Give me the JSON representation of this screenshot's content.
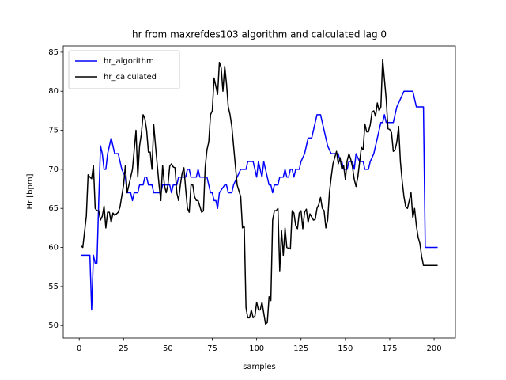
{
  "chart_data": {
    "type": "line",
    "title": "hr from maxrefdes103 algorithm and calculated lag 0",
    "x_label": "samples",
    "y_label": "Hr [bpm]",
    "xlim": [
      -9,
      212
    ],
    "ylim": [
      48.4,
      85.8
    ],
    "xticks": [
      0,
      25,
      50,
      75,
      100,
      125,
      150,
      175,
      200
    ],
    "yticks": [
      50,
      55,
      60,
      65,
      70,
      75,
      80,
      85
    ],
    "legend": "upper left",
    "series": [
      {
        "name": "hr_algorithm",
        "color": "#0000ff",
        "x": [
          1,
          4,
          6,
          7,
          8,
          9,
          10,
          11,
          12,
          13,
          14,
          15,
          16,
          18,
          20,
          22,
          24,
          26,
          27,
          29,
          30,
          31,
          33,
          34,
          36,
          37,
          38,
          39,
          41,
          42,
          46,
          47,
          51,
          52,
          53,
          55,
          56,
          60,
          61,
          62,
          63,
          66,
          67,
          68,
          72,
          73,
          74,
          75,
          76,
          77,
          78,
          79,
          82,
          83,
          84,
          86,
          87,
          89,
          91,
          94,
          95,
          98,
          99,
          100,
          101,
          102,
          103,
          104,
          106,
          107,
          108,
          109,
          110,
          112,
          113,
          115,
          116,
          117,
          118,
          119,
          120,
          121,
          122,
          124,
          125,
          127,
          129,
          131,
          132,
          134,
          136,
          138,
          140,
          142,
          146,
          147,
          148,
          149,
          151,
          152,
          154,
          155,
          156,
          158,
          160,
          161,
          163,
          164,
          166,
          168,
          170,
          171,
          172,
          173,
          177,
          179,
          181,
          183,
          188,
          190,
          194,
          195,
          202
        ],
        "values": [
          59,
          59,
          59,
          52,
          59,
          58,
          58,
          66,
          73,
          72,
          70,
          70,
          72,
          74,
          72,
          72,
          70,
          69,
          67,
          67,
          66,
          67,
          67,
          68,
          68,
          69,
          69,
          68,
          68,
          67,
          67,
          68,
          68,
          67,
          68,
          68,
          69,
          69,
          70,
          70,
          69,
          69,
          70,
          69,
          69,
          68,
          67,
          67,
          66,
          66,
          65,
          67,
          68,
          68,
          67,
          67,
          68,
          69,
          70,
          70,
          71,
          71,
          70,
          69,
          71,
          70,
          69,
          71,
          69,
          68,
          68,
          67,
          68,
          68,
          69,
          69,
          70,
          69,
          69,
          70,
          70,
          69,
          70,
          70,
          71,
          72,
          74,
          74,
          75,
          77,
          77,
          75,
          73,
          72,
          72,
          71,
          71,
          70,
          70,
          71,
          71,
          70,
          72,
          71,
          71,
          70,
          70,
          71,
          72,
          74,
          76,
          76,
          77,
          76,
          76,
          78,
          79,
          80,
          80,
          78,
          78,
          60,
          60
        ]
      },
      {
        "name": "hr_calculated",
        "color": "#000000",
        "x": [
          1,
          2,
          3,
          4,
          5,
          6,
          7,
          8,
          9,
          10,
          11,
          12,
          13,
          14,
          15,
          16,
          17,
          18,
          19,
          20,
          22,
          23,
          25,
          26,
          27,
          28,
          30,
          31,
          32,
          33,
          34,
          35,
          36,
          37,
          38,
          39,
          40,
          41,
          42,
          43,
          45,
          46,
          47,
          48,
          49,
          50,
          51,
          52,
          53,
          54,
          55,
          56,
          57,
          58,
          59,
          60,
          61,
          62,
          63,
          64,
          65,
          66,
          67,
          69,
          70,
          71,
          72,
          73,
          74,
          75,
          76,
          78,
          79,
          80,
          81,
          82,
          83,
          84,
          85,
          86,
          87,
          88,
          89,
          91,
          92,
          93,
          94,
          95,
          96,
          97,
          98,
          99,
          100,
          101,
          102,
          103,
          105,
          106,
          107,
          108,
          109,
          110,
          111,
          112,
          113,
          114,
          115,
          116,
          117,
          119,
          120,
          121,
          122,
          123,
          124,
          125,
          126,
          127,
          128,
          129,
          130,
          132,
          133,
          134,
          135,
          136,
          137,
          138,
          139,
          140,
          141,
          142,
          143,
          145,
          146,
          147,
          148,
          149,
          150,
          151,
          152,
          153,
          154,
          155,
          156,
          157,
          159,
          160,
          161,
          162,
          163,
          164,
          165,
          166,
          167,
          168,
          169,
          170,
          171,
          173,
          174,
          175,
          176,
          177,
          178,
          179,
          180,
          181,
          182,
          183,
          184,
          185,
          187,
          188,
          189,
          190,
          191,
          192,
          193,
          194,
          202
        ],
        "values": [
          60.2,
          60,
          62,
          64,
          69.3,
          69,
          68.8,
          70.5,
          65,
          64.7,
          64.7,
          63.5,
          64,
          65.3,
          62.5,
          64.5,
          64.5,
          63.2,
          64.4,
          64.1,
          64.5,
          65.2,
          68,
          70.5,
          67,
          68,
          70,
          72.5,
          75,
          69,
          73,
          74.5,
          77,
          76.5,
          75,
          72.2,
          72.2,
          70,
          75.7,
          73,
          68,
          66,
          70.5,
          68,
          67,
          68,
          70.4,
          70.7,
          70.3,
          70.2,
          67,
          66,
          68,
          69.5,
          70.2,
          67.5,
          65,
          64.5,
          68,
          68,
          66.5,
          66,
          66,
          64.5,
          64.7,
          70.3,
          72.5,
          73.5,
          77,
          77.5,
          81.7,
          79.6,
          83.7,
          83,
          80,
          83.2,
          81,
          78,
          77,
          75.5,
          73,
          70.5,
          68,
          66.5,
          62.5,
          62.7,
          52.3,
          51,
          51,
          52,
          51,
          51.2,
          53,
          52,
          52,
          53,
          50.2,
          50.4,
          53.7,
          53.2,
          63.5,
          64.7,
          64.7,
          65,
          57,
          62.2,
          59,
          62.5,
          60,
          59.8,
          64.7,
          64.4,
          62.8,
          62.4,
          64.4,
          64.7,
          62.4,
          64.5,
          64.9,
          63.2,
          64.3,
          63.5,
          63.6,
          65,
          65.5,
          66.4,
          65,
          64.7,
          62.5,
          63.5,
          67,
          69,
          70.7,
          72.3,
          70.7,
          71.5,
          70,
          70.5,
          68.7,
          71.1,
          72,
          71.3,
          70.3,
          68.7,
          67.8,
          69,
          72.8,
          72.5,
          75.8,
          74.8,
          74.8,
          75.7,
          77.3,
          77.5,
          76.8,
          78.5,
          77.5,
          78,
          84.1,
          79,
          75.2,
          75.1,
          74.7,
          72.3,
          72.5,
          73.5,
          75.5,
          71,
          68.5,
          66.5,
          65.2,
          65,
          67,
          63.8,
          65,
          62.8,
          61.3,
          60.5,
          58.8,
          57.7,
          57.7
        ]
      }
    ]
  }
}
